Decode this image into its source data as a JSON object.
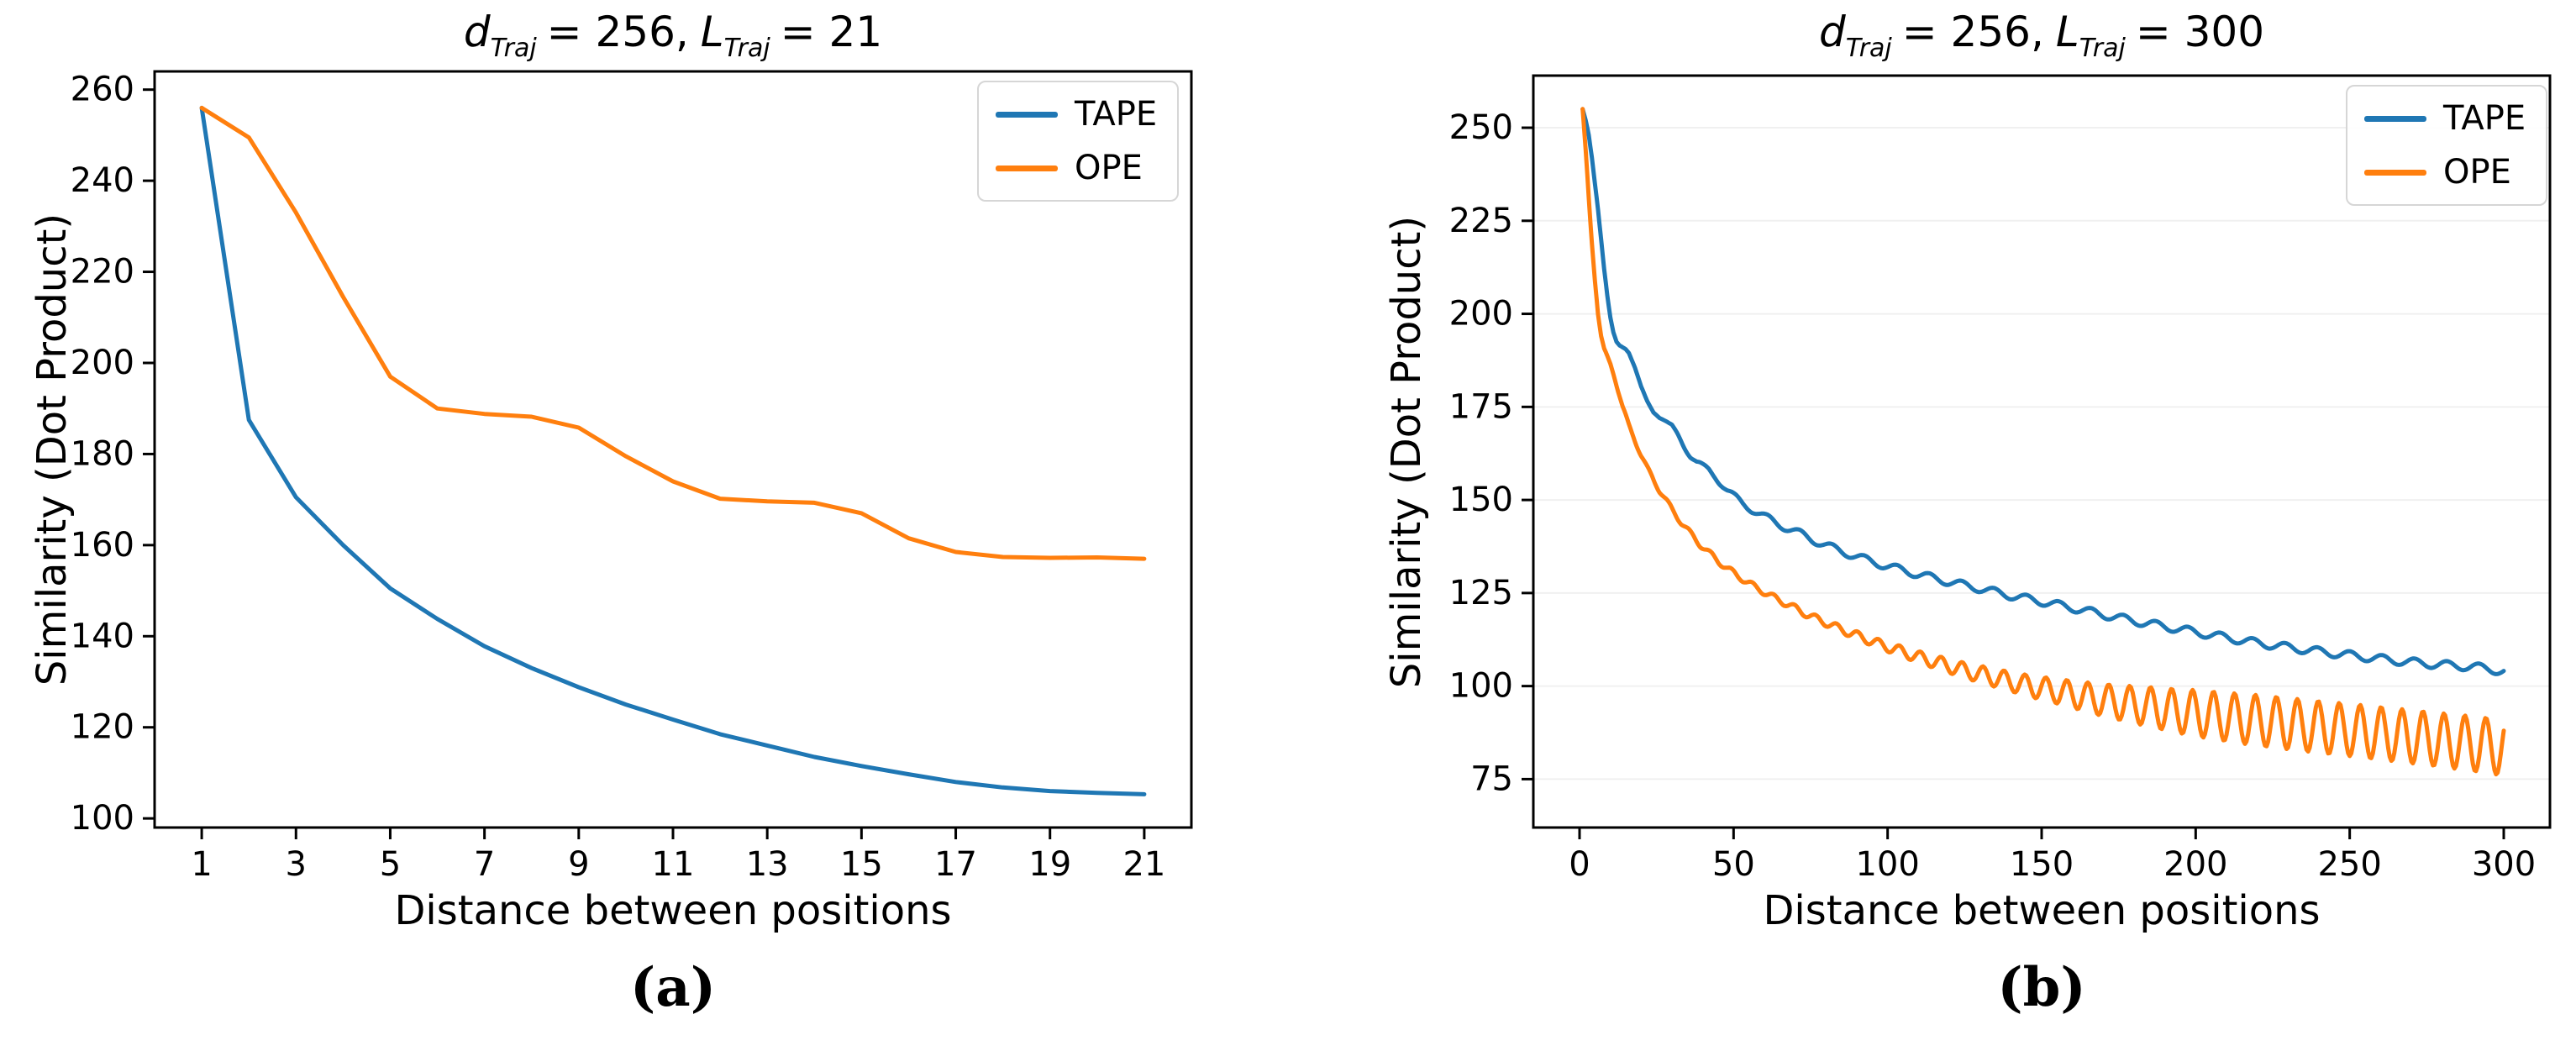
{
  "figure": {
    "background": "#ffffff",
    "axis_color": "#000000",
    "grid_color": "#f0f0f0",
    "captions": {
      "a": "(a)",
      "b": "(b)"
    }
  },
  "chart_data": [
    {
      "type": "line",
      "title": {
        "plain": "d_Traj = 256, L_Traj = 21",
        "var1": "d",
        "sub1": "Traj",
        "eq1": "= 256,",
        "var2": "L",
        "sub2": "Traj",
        "eq2": "= 21"
      },
      "xlabel": "Distance between positions",
      "ylabel": "Similarity (Dot Product)",
      "xlim": [
        0,
        22
      ],
      "ylim": [
        98,
        264
      ],
      "xticks": [
        1,
        3,
        5,
        7,
        9,
        11,
        13,
        15,
        17,
        19,
        21
      ],
      "yticks": [
        100,
        120,
        140,
        160,
        180,
        200,
        220,
        240,
        260
      ],
      "grid": false,
      "legend_position": "upper right",
      "series": [
        {
          "name": "TAPE",
          "color": "#1f77b4",
          "x": [
            1,
            2,
            3,
            4,
            5,
            6,
            7,
            8,
            9,
            10,
            11,
            12,
            13,
            14,
            15,
            16,
            17,
            18,
            19,
            20,
            21
          ],
          "y": [
            256,
            187.5,
            170.5,
            160,
            150.5,
            143.8,
            137.8,
            133,
            128.8,
            125,
            121.7,
            118.5,
            116,
            113.5,
            111.5,
            109.7,
            108,
            106.8,
            106,
            105.6,
            105.3
          ]
        },
        {
          "name": "OPE",
          "color": "#ff7f0e",
          "x": [
            1,
            2,
            3,
            4,
            5,
            6,
            7,
            8,
            9,
            10,
            11,
            12,
            13,
            14,
            15,
            16,
            17,
            18,
            19,
            20,
            21
          ],
          "y": [
            256,
            249.5,
            233,
            214.5,
            197,
            190,
            188.8,
            188.2,
            185.8,
            179.5,
            174,
            170.2,
            169.6,
            169.3,
            167,
            161.5,
            158.5,
            157.4,
            157.2,
            157.3,
            157
          ]
        }
      ]
    },
    {
      "type": "line",
      "title": {
        "plain": "d_Traj = 256, L_Traj = 300",
        "var1": "d",
        "sub1": "Traj",
        "eq1": "= 256,",
        "var2": "L",
        "sub2": "Traj",
        "eq2": "= 300"
      },
      "xlabel": "Distance between positions",
      "ylabel": "Similarity (Dot Product)",
      "xlim": [
        -15,
        315
      ],
      "ylim": [
        62,
        264
      ],
      "xticks": [
        0,
        50,
        100,
        150,
        200,
        250,
        300
      ],
      "yticks": [
        75,
        100,
        125,
        150,
        175,
        200,
        225,
        250
      ],
      "grid": true,
      "legend_position": "upper right",
      "series": [
        {
          "name": "TAPE",
          "color": "#1f77b4",
          "sample_step": 0.5,
          "trend": [
            [
              1,
              255
            ],
            [
              2,
              252
            ],
            [
              3,
              248
            ],
            [
              4,
              242
            ],
            [
              5,
              235
            ],
            [
              6,
              228
            ],
            [
              7,
              220
            ],
            [
              8,
              212
            ],
            [
              9,
              205
            ],
            [
              10,
              199
            ],
            [
              11,
              195
            ],
            [
              12,
              192.5
            ],
            [
              13,
              191.5
            ],
            [
              14,
              191
            ],
            [
              15,
              190.5
            ],
            [
              16,
              189.5
            ],
            [
              17,
              187.5
            ],
            [
              18,
              185.5
            ],
            [
              19,
              183
            ],
            [
              20,
              180.5
            ],
            [
              22,
              176.5
            ],
            [
              24,
              173.5
            ],
            [
              26,
              172
            ],
            [
              28,
              171.2
            ],
            [
              30,
              170
            ],
            [
              32,
              167.5
            ],
            [
              34,
              164.5
            ],
            [
              36,
              162
            ],
            [
              38,
              160
            ],
            [
              40,
              158.8
            ],
            [
              42,
              158
            ],
            [
              44,
              156.5
            ],
            [
              46,
              154.5
            ],
            [
              48,
              152.5
            ],
            [
              50,
              151
            ],
            [
              53,
              149
            ],
            [
              56,
              147.5
            ],
            [
              60,
              145.5
            ],
            [
              64,
              143.8
            ],
            [
              68,
              142.2
            ],
            [
              72,
              140.8
            ],
            [
              76,
              139.2
            ],
            [
              80,
              137.8
            ],
            [
              85,
              136.2
            ],
            [
              90,
              134.8
            ],
            [
              95,
              133.4
            ],
            [
              100,
              132.2
            ],
            [
              110,
              130
            ],
            [
              120,
              128
            ],
            [
              130,
              126.2
            ],
            [
              140,
              124.3
            ],
            [
              150,
              122.7
            ],
            [
              160,
              121
            ],
            [
              170,
              119.2
            ],
            [
              180,
              117.5
            ],
            [
              190,
              116
            ],
            [
              200,
              114.5
            ],
            [
              210,
              113
            ],
            [
              220,
              111.6
            ],
            [
              230,
              110.4
            ],
            [
              240,
              109.3
            ],
            [
              250,
              108.3
            ],
            [
              260,
              107.3
            ],
            [
              270,
              106.4
            ],
            [
              280,
              105.7
            ],
            [
              290,
              105.2
            ],
            [
              300,
              104
            ]
          ],
          "osc": {
            "period": 10.5,
            "phase": 37.4,
            "amp": [
              [
                0,
                0
              ],
              [
                28,
                0
              ],
              [
                36,
                0.9
              ],
              [
                60,
                1.0
              ],
              [
                300,
                1.1
              ]
            ]
          }
        },
        {
          "name": "OPE",
          "color": "#ff7f0e",
          "sample_step": 0.5,
          "trend": [
            [
              1,
              255
            ],
            [
              2,
              244
            ],
            [
              3,
              231
            ],
            [
              4,
              219
            ],
            [
              5,
              209
            ],
            [
              6,
              200
            ],
            [
              7,
              194
            ],
            [
              8,
              190.5
            ],
            [
              9,
              188.5
            ],
            [
              10,
              186.5
            ],
            [
              11,
              184
            ],
            [
              12,
              181
            ],
            [
              13,
              178
            ],
            [
              14,
              175
            ],
            [
              15,
              172.5
            ],
            [
              16,
              170
            ],
            [
              17,
              168
            ],
            [
              18,
              166
            ],
            [
              19,
              164
            ],
            [
              20,
              162
            ],
            [
              22,
              158.5
            ],
            [
              24,
              155.5
            ],
            [
              26,
              152.5
            ],
            [
              28,
              150
            ],
            [
              30,
              147.5
            ],
            [
              33,
              144
            ],
            [
              36,
              141
            ],
            [
              39,
              138.2
            ],
            [
              42,
              135.8
            ],
            [
              45,
              133.6
            ],
            [
              48,
              131.6
            ],
            [
              51,
              129.8
            ],
            [
              54,
              128.2
            ],
            [
              57,
              126.6
            ],
            [
              60,
              125.2
            ],
            [
              64,
              123.4
            ],
            [
              68,
              121.8
            ],
            [
              72,
              120
            ],
            [
              76,
              118.4
            ],
            [
              80,
              117
            ],
            [
              85,
              115.2
            ],
            [
              90,
              113.6
            ],
            [
              95,
              112
            ],
            [
              100,
              110.5
            ],
            [
              105,
              109.2
            ],
            [
              110,
              107.8
            ],
            [
              115,
              106.6
            ],
            [
              120,
              105.4
            ],
            [
              125,
              104.2
            ],
            [
              130,
              103.2
            ],
            [
              135,
              102.2
            ],
            [
              140,
              101.2
            ],
            [
              145,
              100.2
            ],
            [
              150,
              99.4
            ],
            [
              155,
              98.6
            ],
            [
              160,
              97.8
            ],
            [
              165,
              97
            ],
            [
              170,
              96.2
            ],
            [
              175,
              95.6
            ],
            [
              180,
              95
            ],
            [
              185,
              94.4
            ],
            [
              190,
              93.8
            ],
            [
              195,
              93.2
            ],
            [
              200,
              92.7
            ],
            [
              210,
              91.7
            ],
            [
              220,
              90.8
            ],
            [
              230,
              89.9
            ],
            [
              240,
              89
            ],
            [
              250,
              88.2
            ],
            [
              260,
              87.3
            ],
            [
              270,
              86.4
            ],
            [
              280,
              85.5
            ],
            [
              290,
              84.5
            ],
            [
              300,
              83.5
            ]
          ],
          "osc": {
            "period": 6.8,
            "phase": 299.3,
            "amp": [
              [
                0,
                0
              ],
              [
                10,
                0.3
              ],
              [
                15,
                0.5
              ],
              [
                40,
                0.8
              ],
              [
                60,
                0.8
              ],
              [
                80,
                1.0
              ],
              [
                100,
                1.3
              ],
              [
                120,
                1.9
              ],
              [
                140,
                2.6
              ],
              [
                155,
                3.3
              ],
              [
                170,
                4.3
              ],
              [
                185,
                5.3
              ],
              [
                200,
                6.2
              ],
              [
                220,
                6.8
              ],
              [
                250,
                7.0
              ],
              [
                280,
                7.2
              ],
              [
                300,
                7.5
              ]
            ]
          }
        }
      ]
    }
  ]
}
